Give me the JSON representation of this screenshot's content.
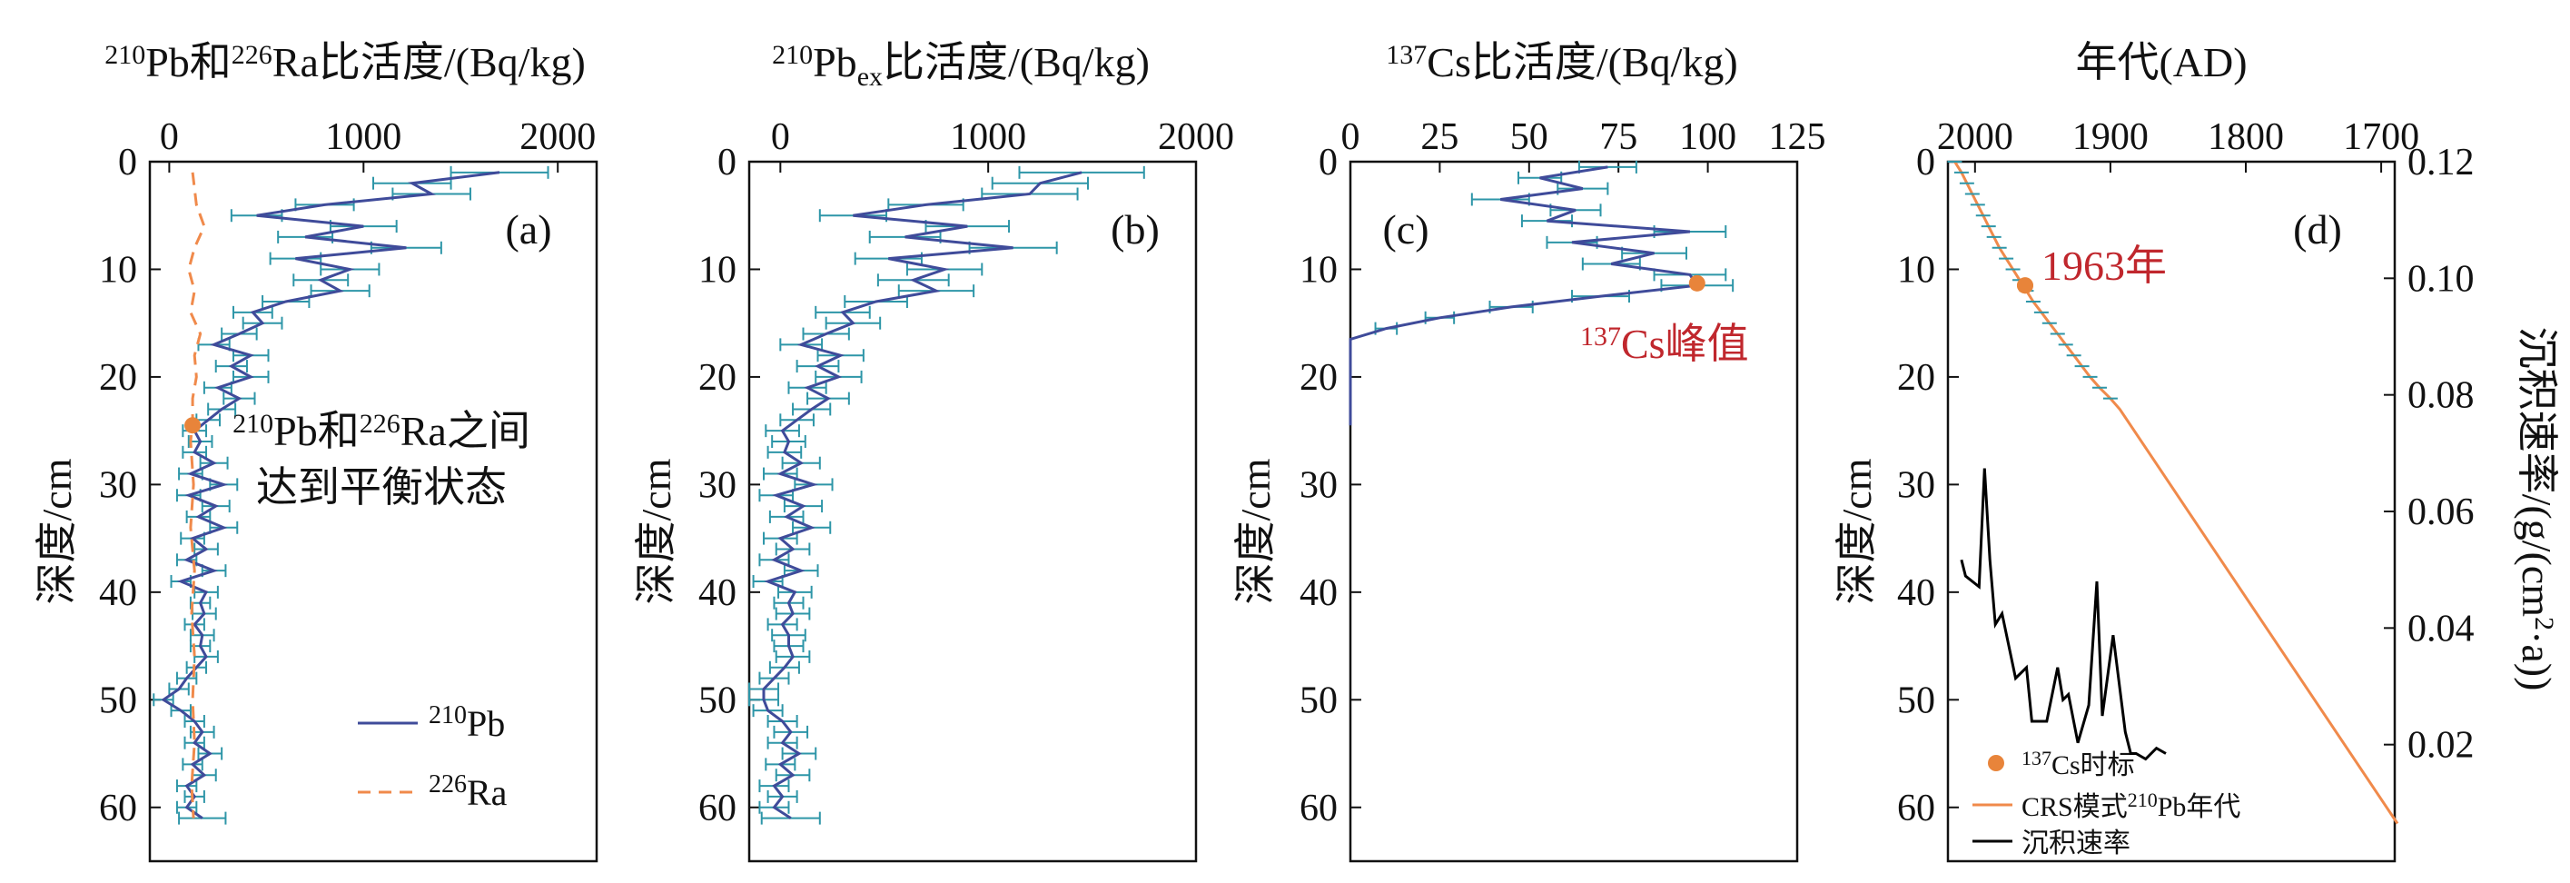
{
  "colors": {
    "pb210": "#3f4b9a",
    "errbar": "#2e96a8",
    "ra226": "#f08a4b",
    "crs": "#f08a4b",
    "rate": "#000000",
    "marker": "#e8843a",
    "highlight": "#c0272d"
  },
  "chart_data": [
    {
      "panel": "(a)",
      "type": "line",
      "title": "²¹⁰Pb和²²⁶Ra比活度/(Bq/kg)",
      "xlabel": "²¹⁰Pb和²²⁶Ra比活度/(Bq/kg)",
      "ylabel": "深度/cm",
      "xlim": [
        -100,
        2200
      ],
      "ylim": [
        0,
        65
      ],
      "x_axis_position": "top",
      "y_inverted": true,
      "xticks": [
        0,
        1000,
        2000
      ],
      "yticks": [
        0,
        10,
        20,
        30,
        40,
        50,
        60
      ],
      "legend_position": "bottom-right",
      "annotation": {
        "lines": [
          "²¹⁰Pb和²²⁶Ra之间",
          "达到平衡状态"
        ],
        "marker": {
          "x": 120,
          "y": 24.5
        }
      },
      "series": [
        {
          "name": "²¹⁰Pb",
          "style": "solid",
          "depth": [
            1,
            2,
            3,
            4,
            5,
            6,
            7,
            8,
            9,
            10,
            11,
            12,
            13,
            14,
            15,
            16,
            17,
            18,
            19,
            20,
            21,
            22,
            23,
            24,
            25,
            26,
            27,
            28,
            29,
            30,
            31,
            32,
            33,
            34,
            35,
            36,
            37,
            38,
            39,
            40,
            41,
            42,
            43,
            44,
            45,
            46,
            47,
            48,
            49,
            50,
            51,
            52,
            53,
            54,
            55,
            56,
            57,
            58,
            59,
            60,
            61
          ],
          "activity": [
            1700,
            1250,
            1350,
            800,
            450,
            1000,
            700,
            1220,
            650,
            930,
            780,
            880,
            600,
            430,
            480,
            360,
            230,
            420,
            320,
            420,
            250,
            360,
            270,
            200,
            130,
            160,
            130,
            230,
            110,
            280,
            100,
            240,
            150,
            280,
            120,
            190,
            90,
            230,
            60,
            190,
            160,
            180,
            130,
            170,
            160,
            190,
            140,
            90,
            50,
            -30,
            60,
            130,
            170,
            130,
            210,
            120,
            180,
            90,
            130,
            90,
            170
          ],
          "error": [
            250,
            200,
            200,
            150,
            130,
            170,
            140,
            180,
            130,
            150,
            140,
            150,
            120,
            100,
            100,
            90,
            80,
            90,
            80,
            90,
            70,
            80,
            70,
            60,
            60,
            60,
            60,
            70,
            60,
            70,
            60,
            70,
            60,
            70,
            60,
            60,
            50,
            60,
            50,
            60,
            50,
            60,
            50,
            60,
            50,
            60,
            50,
            50,
            50,
            50,
            50,
            50,
            60,
            50,
            60,
            50,
            60,
            50,
            50,
            50,
            120
          ]
        },
        {
          "name": "²²⁶Ra",
          "style": "dashed",
          "depth": [
            1,
            4,
            6,
            8,
            10,
            12,
            14,
            16,
            18,
            20,
            22,
            24,
            26,
            30,
            34,
            38,
            42,
            46,
            50,
            54,
            58,
            61
          ],
          "activity": [
            120,
            140,
            180,
            130,
            100,
            130,
            110,
            160,
            130,
            140,
            120,
            120,
            110,
            125,
            110,
            130,
            115,
            130,
            120,
            130,
            115,
            125
          ]
        }
      ]
    },
    {
      "panel": "(b)",
      "type": "line",
      "title": "²¹⁰Pbex比活度/(Bq/kg)",
      "xlabel": "²¹⁰Pbex比活度/(Bq/kg)",
      "ylabel": "深度/cm",
      "xlim": [
        -150,
        2000
      ],
      "ylim": [
        0,
        65
      ],
      "x_axis_position": "top",
      "y_inverted": true,
      "xticks": [
        0,
        1000,
        2000
      ],
      "yticks": [
        0,
        10,
        20,
        30,
        40,
        50,
        60
      ],
      "series": [
        {
          "name": "²¹⁰Pbex",
          "style": "solid",
          "depth": [
            1,
            2,
            3,
            4,
            5,
            6,
            7,
            8,
            9,
            10,
            11,
            12,
            13,
            14,
            15,
            16,
            17,
            18,
            19,
            20,
            21,
            22,
            23,
            24,
            25,
            26,
            27,
            28,
            29,
            30,
            31,
            32,
            33,
            34,
            35,
            36,
            37,
            38,
            39,
            40,
            41,
            42,
            43,
            44,
            45,
            46,
            47,
            48,
            49,
            50,
            51,
            52,
            53,
            54,
            55,
            56,
            57,
            58,
            59,
            60,
            61
          ],
          "activity": [
            1450,
            1250,
            1200,
            700,
            350,
            900,
            600,
            1120,
            520,
            790,
            640,
            750,
            460,
            300,
            350,
            220,
            100,
            290,
            180,
            280,
            130,
            230,
            150,
            80,
            10,
            40,
            20,
            100,
            0,
            160,
            -20,
            110,
            30,
            150,
            0,
            60,
            -30,
            100,
            -60,
            70,
            40,
            60,
            10,
            40,
            40,
            60,
            20,
            -30,
            -80,
            -80,
            -60,
            10,
            50,
            10,
            90,
            0,
            60,
            -30,
            10,
            -30,
            50
          ],
          "error": [
            300,
            230,
            230,
            180,
            160,
            200,
            170,
            210,
            160,
            180,
            170,
            180,
            150,
            130,
            130,
            110,
            100,
            110,
            100,
            110,
            90,
            100,
            90,
            80,
            80,
            80,
            80,
            90,
            80,
            90,
            80,
            90,
            80,
            90,
            80,
            80,
            70,
            80,
            70,
            80,
            70,
            80,
            70,
            80,
            70,
            80,
            70,
            70,
            70,
            70,
            70,
            70,
            80,
            70,
            80,
            70,
            80,
            70,
            70,
            70,
            140
          ]
        }
      ]
    },
    {
      "panel": "(c)",
      "type": "line",
      "title": "¹³⁷Cs比活度/(Bq/kg)",
      "xlabel": "¹³⁷Cs比活度/(Bq/kg)",
      "ylabel": "深度/cm",
      "xlim": [
        0,
        125
      ],
      "ylim": [
        0,
        65
      ],
      "x_axis_position": "top",
      "y_inverted": true,
      "xticks": [
        0,
        25,
        50,
        75,
        100,
        125
      ],
      "yticks": [
        0,
        10,
        20,
        30,
        40,
        50,
        60
      ],
      "annotation": {
        "text": "¹³⁷Cs峰值",
        "marker": {
          "x": 97,
          "y": 11.3
        }
      },
      "series": [
        {
          "name": "¹³⁷Cs",
          "style": "solid",
          "depth": [
            0.5,
            1.5,
            2.5,
            3.5,
            4.5,
            5.5,
            6.5,
            7.5,
            8.5,
            9.5,
            10.5,
            11.5,
            12.5,
            13.5,
            14.5,
            15.5,
            16.5,
            17,
            20,
            24.5
          ],
          "activity": [
            72,
            53,
            65,
            42,
            63,
            55,
            95,
            62,
            85,
            73,
            95,
            97,
            70,
            45,
            25,
            10,
            0,
            0,
            0,
            0
          ],
          "error": [
            8,
            6,
            7,
            8,
            7,
            7,
            10,
            7,
            9,
            8,
            10,
            10,
            8,
            6,
            4,
            3,
            0,
            0,
            0,
            0
          ]
        }
      ]
    },
    {
      "panel": "(d)",
      "type": "line",
      "title": "年代(AD)",
      "xlabel": "年代(AD)",
      "ylabel": "深度/cm",
      "y2label": "沉积速率/(g/(cm²·a))",
      "xlim": [
        2020,
        1690
      ],
      "ylim": [
        0,
        65
      ],
      "y2lim": [
        0.0,
        0.12
      ],
      "x_axis_position": "top",
      "y_inverted": true,
      "xticks": [
        2000,
        1900,
        1800,
        1700
      ],
      "yticks": [
        0,
        10,
        20,
        30,
        40,
        50,
        60
      ],
      "y2ticks": [
        0.02,
        0.04,
        0.06,
        0.08,
        0.1,
        0.12
      ],
      "legend_position": "bottom-left",
      "annotation": {
        "text": "1963年",
        "marker": {
          "x": 1963,
          "y": 11.5
        }
      },
      "series": [
        {
          "name": "CRS模式²¹⁰Pb年代",
          "style": "solid",
          "depth": [
            0,
            1,
            2,
            3,
            4,
            5,
            6,
            7,
            8,
            9,
            10,
            11,
            12,
            13,
            14,
            15,
            16,
            17,
            18,
            19,
            20,
            21,
            22,
            23,
            61.5
          ],
          "year": [
            2015,
            2010,
            2006,
            2002,
            1998,
            1994,
            1990,
            1986,
            1982,
            1977,
            1972,
            1967,
            1962,
            1957,
            1951,
            1945,
            1939,
            1933,
            1927,
            1921,
            1915,
            1908,
            1900,
            1893,
            1688
          ]
        },
        {
          "name": "沉积速率",
          "style": "solid",
          "axis": "secondary",
          "depth": [
            37,
            38.5,
            39.5,
            28.5,
            37,
            43,
            42,
            48,
            47,
            52,
            52,
            47,
            50,
            49.5,
            54,
            50.5,
            39,
            51.5,
            44,
            53,
            55,
            55,
            55.5,
            54.5,
            55
          ],
          "year": [
            2010,
            2007,
            1997,
            1993,
            1989,
            1985,
            1980,
            1970,
            1962,
            1958,
            1947,
            1939,
            1935,
            1931,
            1924,
            1916,
            1910,
            1906,
            1898,
            1889,
            1885,
            1881,
            1874,
            1866,
            1859
          ]
        }
      ],
      "marker_point": {
        "name": "¹³⁷Cs时标",
        "year": 1963,
        "depth": 11.5
      }
    }
  ],
  "legends": {
    "a": [
      {
        "label": "²¹⁰Pb",
        "style": "solid"
      },
      {
        "label": "²²⁶Ra",
        "style": "dashed"
      }
    ],
    "d": [
      {
        "label": "¹³⁷Cs时标",
        "style": "marker"
      },
      {
        "label": "CRS模式²¹⁰Pb年代",
        "style": "solid"
      },
      {
        "label": "沉积速率",
        "style": "solid-black"
      }
    ]
  },
  "labels": {
    "title_a_pre": "210",
    "title_a_1": "Pb和",
    "title_a_sup2": "226",
    "title_a_2": "Ra比活度/(Bq/kg)",
    "title_b_sup": "210",
    "title_b_1": "Pb",
    "title_b_sub": "ex",
    "title_b_2": "比活度/(Bq/kg)",
    "title_c_sup": "137",
    "title_c_1": "Cs比活度/(Bq/kg)",
    "title_d": "年代(AD)",
    "ylabel": "深度/cm",
    "y2label_1": "沉积速率/(g/(cm",
    "y2label_sup": "2",
    "y2label_2": "·a))",
    "panel_a": "(a)",
    "panel_b": "(b)",
    "panel_c": "(c)",
    "panel_d": "(d)",
    "ann_a_line1_sup": "210",
    "ann_a_line1_a": "Pb和",
    "ann_a_line1_sup2": "226",
    "ann_a_line1_b": "Ra之间",
    "ann_a_line2": "达到平衡状态",
    "ann_c_sup": "137",
    "ann_c_text": "Cs峰值",
    "ann_d_text": "1963年",
    "leg_a_pb_sup": "210",
    "leg_a_pb": "Pb",
    "leg_a_ra_sup": "226",
    "leg_a_ra": "Ra",
    "leg_d_cs_sup": "137",
    "leg_d_cs": "Cs时标",
    "leg_d_crs_a": "CRS模式",
    "leg_d_crs_sup": "210",
    "leg_d_crs_b": "Pb年代",
    "leg_d_rate": "沉积速率"
  }
}
